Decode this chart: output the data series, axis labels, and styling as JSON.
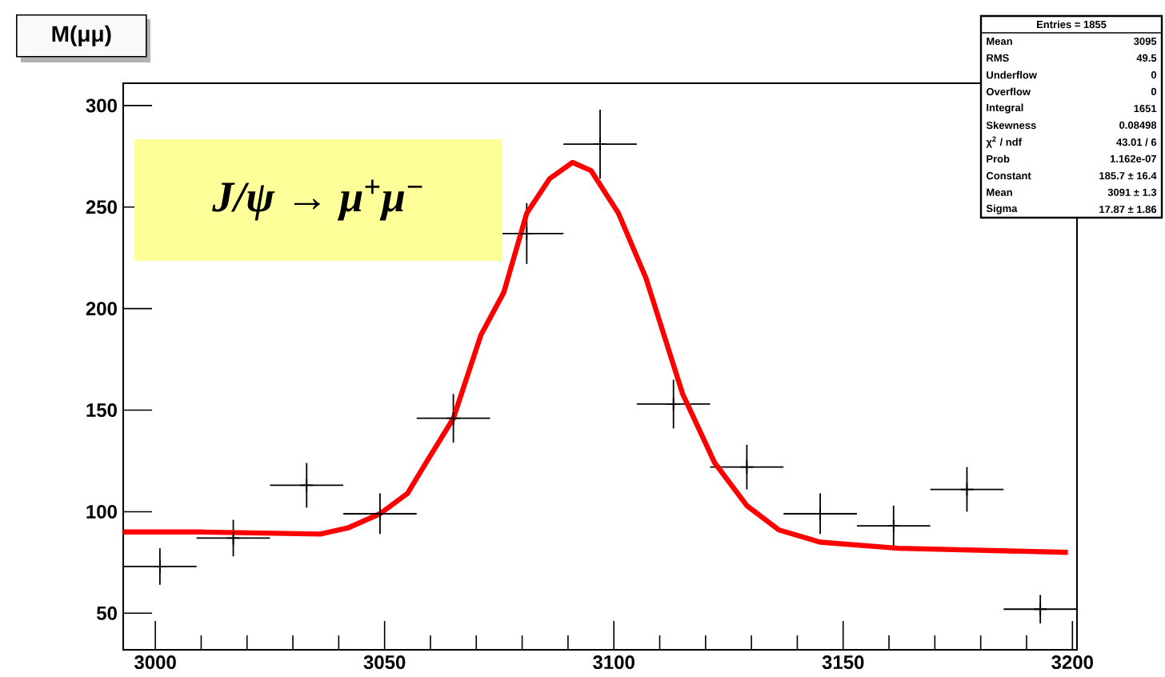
{
  "chart_data": {
    "type": "scatter",
    "title": "M(μμ)",
    "xlim": [
      2993,
      3201
    ],
    "ylim": [
      32,
      311
    ],
    "xticks": [
      3000,
      3050,
      3100,
      3150,
      3200
    ],
    "yticks": [
      50,
      100,
      150,
      200,
      250,
      300
    ],
    "grid": false,
    "series": [
      {
        "color": "#000000",
        "marker": "cross",
        "x": [
          3001,
          3017,
          3033,
          3049,
          3065,
          3081,
          3097,
          3113,
          3129,
          3145,
          3161,
          3177,
          3193
        ],
        "values": [
          73,
          87,
          113,
          99,
          146,
          237,
          281,
          153,
          122,
          99,
          93,
          111,
          52
        ],
        "errors": [
          9,
          9,
          11,
          10,
          12,
          15,
          17,
          12,
          11,
          10,
          10,
          11,
          7
        ],
        "xerrors": [
          8,
          8,
          8,
          8,
          8,
          8,
          8,
          8,
          8,
          8,
          8,
          8,
          8
        ]
      },
      {
        "type": "line",
        "color": "#ff0000",
        "x": [
          2993,
          3010,
          3036,
          3042,
          3049,
          3055,
          3059,
          3065,
          3071,
          3076,
          3081,
          3086,
          3091,
          3095,
          3101,
          3107,
          3115,
          3122,
          3129,
          3136,
          3145,
          3162,
          3199
        ],
        "values": [
          90,
          90,
          89,
          92,
          99,
          109,
          124,
          146,
          187,
          208,
          247,
          264,
          272,
          268,
          247,
          215,
          158,
          124,
          103,
          91,
          85,
          82,
          80
        ]
      }
    ],
    "annotations": [
      "J/ψ → μ$^{+}$μ$^{−}$",
      "Entries = 1855",
      "Mean",
      "3095",
      "RMS",
      "49.5",
      "Underflow",
      "0",
      "Overflow",
      "0",
      "Integral",
      "1651",
      "Skewness",
      "0.08498",
      "χ$^{2}$ / ndf",
      "43.01 / 6",
      "Prob",
      "1.162e-07",
      "Constant",
      "185.7 ± 16.4",
      "Mean",
      "3091 ± 1.3",
      "Sigma",
      "17.87 ± 1.86"
    ]
  }
}
